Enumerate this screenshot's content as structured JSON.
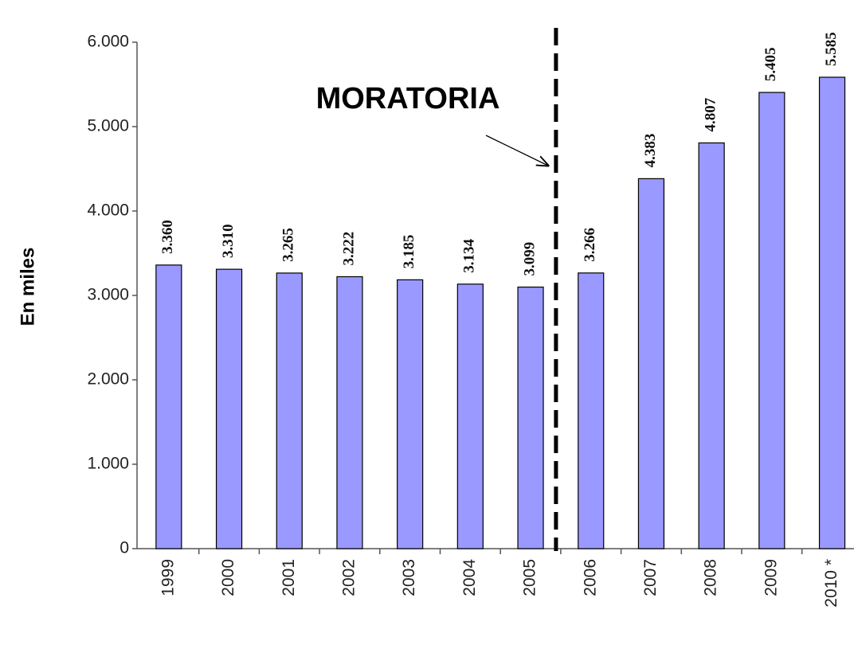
{
  "chart_data": {
    "type": "bar",
    "y_label": "En miles",
    "annotation": "MORATORIA",
    "categories": [
      "1999",
      "2000",
      "2001",
      "2002",
      "2003",
      "2004",
      "2005",
      "2006",
      "2007",
      "2008",
      "2009",
      "2010 *"
    ],
    "values": [
      3360,
      3310,
      3265,
      3222,
      3185,
      3134,
      3099,
      3266,
      4383,
      4807,
      5405,
      5585
    ],
    "value_labels": [
      "3.360",
      "3.310",
      "3.265",
      "3.222",
      "3.185",
      "3.134",
      "3.099",
      "3.266",
      "4.383",
      "4.807",
      "5.405",
      "5.585"
    ],
    "color": "#9999ff",
    "ylim": [
      0,
      6000
    ],
    "yticks": [
      0,
      {
        "value": 1000,
        "label": "1.000"
      },
      {
        "value": 2000,
        "label": "2.000"
      },
      {
        "value": 3000,
        "label": "3.000"
      },
      {
        "value": 4000,
        "label": "4.000"
      },
      {
        "value": 5000,
        "label": "5.000"
      },
      {
        "value": 6000,
        "label": "6.000"
      }
    ],
    "grid": false
  }
}
